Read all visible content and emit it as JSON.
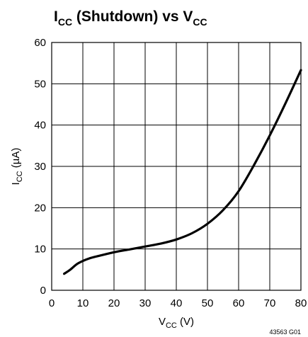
{
  "chart_data": {
    "type": "line",
    "title": {
      "main": "I",
      "sub": "CC",
      "rest": " (Shutdown) vs V",
      "sub2": "CC"
    },
    "xlabel": {
      "main": "V",
      "sub": "CC",
      "rest": " (V)"
    },
    "ylabel": {
      "main": "I",
      "sub": "CC",
      "rest": " (µA)"
    },
    "xlim": [
      0,
      80
    ],
    "ylim": [
      0,
      60
    ],
    "x_ticks": [
      0,
      10,
      20,
      30,
      40,
      50,
      60,
      70,
      80
    ],
    "y_ticks": [
      0,
      10,
      20,
      30,
      40,
      50,
      60
    ],
    "grid": true,
    "series": [
      {
        "x": [
          4,
          6,
          8,
          10,
          12,
          15,
          20,
          25,
          30,
          35,
          40,
          45,
          50,
          55,
          60,
          65,
          70,
          75,
          80
        ],
        "y": [
          4,
          5,
          6.3,
          7.1,
          7.7,
          8.3,
          9.2,
          9.9,
          10.6,
          11.3,
          12.3,
          13.8,
          16.1,
          19.4,
          24.0,
          30.4,
          37.5,
          45.2,
          53.3
        ]
      }
    ],
    "figure_id": "43563 G01"
  }
}
